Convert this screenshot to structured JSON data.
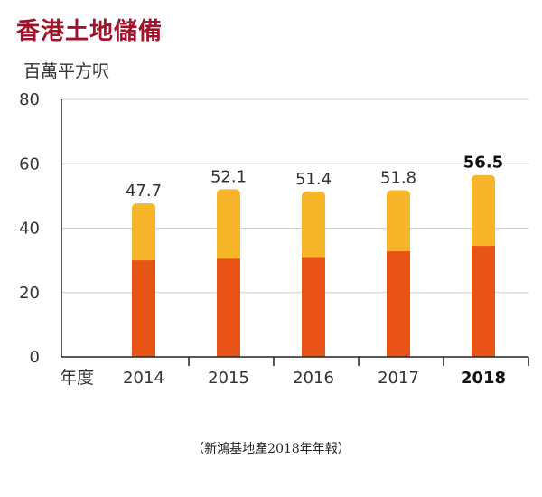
{
  "header": {
    "title": "香港土地儲備",
    "unit_label": "百萬平方呎"
  },
  "source_note": "（新鴻基地產2018年年報）",
  "colors": {
    "title": "#a2122b",
    "lower_segment": "#e85416",
    "upper_segment": "#f7b52a",
    "axis": "#222222",
    "text": "#333333"
  },
  "chart_data": {
    "type": "bar",
    "stacked": true,
    "title": "香港土地儲備",
    "ylabel": "百萬平方呎",
    "xlabel": "年度",
    "categories": [
      "2014",
      "2015",
      "2016",
      "2017",
      "2018"
    ],
    "highlight_category": "2018",
    "totals": [
      47.7,
      52.1,
      51.4,
      51.8,
      56.5
    ],
    "total_labels": [
      "47.7",
      "52.1",
      "51.4",
      "51.8",
      "56.5"
    ],
    "series": [
      {
        "values": [
          30.0,
          30.5,
          31.0,
          32.8,
          34.5
        ]
      },
      {
        "values": [
          17.7,
          21.6,
          20.4,
          19.0,
          22.0
        ]
      }
    ],
    "ylim": [
      0,
      80
    ],
    "yticks": [
      0,
      20,
      40,
      60,
      80
    ],
    "grid": true
  }
}
